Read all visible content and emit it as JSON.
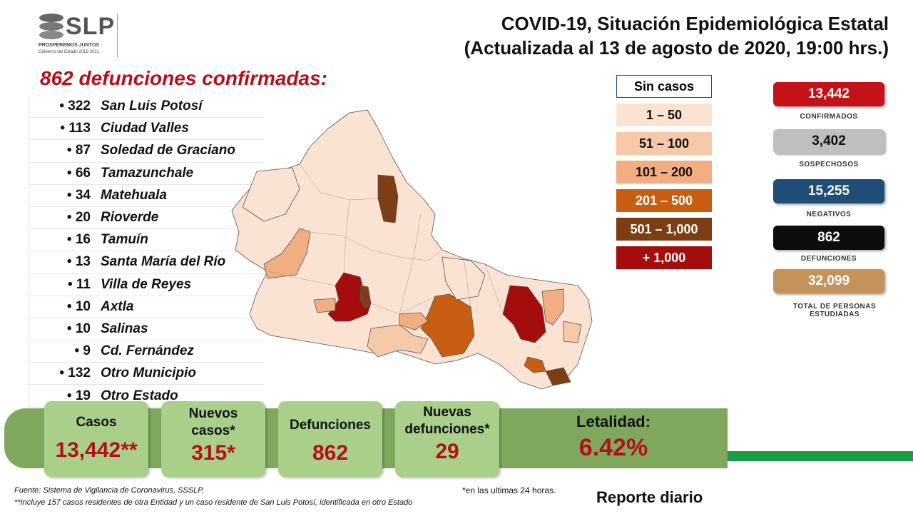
{
  "header": {
    "logo": "SLP",
    "logo_tag": "PROSPEREMOS JUNTOS",
    "logo_gov": "Gobierno del Estado 2015-2021",
    "title_line1": "COVID-19, Situación Epidemiológica Estatal",
    "title_line2": "(Actualizada al 13 de agosto de 2020, 19:00 hrs.)"
  },
  "deaths_heading": "862 defunciones confirmadas:",
  "deaths_list": [
    {
      "count": "• 322",
      "name": "San Luis Potosí"
    },
    {
      "count": "• 113",
      "name": "Ciudad Valles"
    },
    {
      "count": "• 87",
      "name": "Soledad de Graciano"
    },
    {
      "count": "• 66",
      "name": "Tamazunchale"
    },
    {
      "count": "• 34",
      "name": "Matehuala"
    },
    {
      "count": "• 20",
      "name": "Rioverde"
    },
    {
      "count": "• 16",
      "name": "Tamuín"
    },
    {
      "count": "• 13",
      "name": "Santa María del Río"
    },
    {
      "count": "• 11",
      "name": "Villa de Reyes"
    },
    {
      "count": "• 10",
      "name": "Axtla"
    },
    {
      "count": "• 10",
      "name": "Salinas"
    },
    {
      "count": "• 9",
      "name": "Cd. Fernández"
    },
    {
      "count": "• 132",
      "name": "Otro Municipio"
    },
    {
      "count": "• 19",
      "name": "Otro Estado"
    }
  ],
  "legend": [
    {
      "label": "Sin casos",
      "color": "#ffffff",
      "text_color": "#111111"
    },
    {
      "label": "1 – 50",
      "color": "#fbe3d4",
      "text_color": "#111111"
    },
    {
      "label": "51 – 100",
      "color": "#f6c9a9",
      "text_color": "#111111"
    },
    {
      "label": "101 – 200",
      "color": "#f2ae80",
      "text_color": "#111111"
    },
    {
      "label": "201 – 500",
      "color": "#c85e12",
      "text_color": "#ffffff"
    },
    {
      "label": "501 – 1,000",
      "color": "#7c3e12",
      "text_color": "#ffffff"
    },
    {
      "label": "+ 1,000",
      "color": "#a50d0d",
      "text_color": "#ffffff"
    }
  ],
  "stats": [
    {
      "value": "13,442",
      "label": "CONFIRMADOS",
      "color": "#c41318",
      "text_color": "#ffffff"
    },
    {
      "value": "3,402",
      "label": "SOSPECHOSOS",
      "color": "#bfbfbf",
      "text_color": "#111111"
    },
    {
      "value": "15,255",
      "label": "NEGATIVOS",
      "color": "#1f4e79",
      "text_color": "#ffffff"
    },
    {
      "value": "862",
      "label": "DEFUNCIONES",
      "color": "#0d0d0d",
      "text_color": "#ffffff"
    },
    {
      "value": "32,099",
      "label": "TOTAL DE PERSONAS ESTUDIADAS",
      "color": "#c4935a",
      "text_color": "#ffffff"
    }
  ],
  "summary": {
    "casos_label": "Casos",
    "casos_value": "13,442**",
    "nuevos_label": "Nuevos casos*",
    "nuevos_value": "315*",
    "def_label": "Defunciones",
    "def_value": "862",
    "nuevas_def_label": "Nuevas defunciones*",
    "nuevas_def_value": "29",
    "letalidad_label": "Letalidad:",
    "letalidad_value": "6.42%"
  },
  "footer": {
    "source": "Fuente: Sistema de Vigilancia  de Coronavirus, SSSLP.",
    "note": "**Incluye 157 casos residentes de otra Entidad  y un caso residente de San Luis Potosí, identificada  en otro Estado",
    "last24": "*en las ultimas 24 horas.",
    "report": "Reporte diario"
  }
}
